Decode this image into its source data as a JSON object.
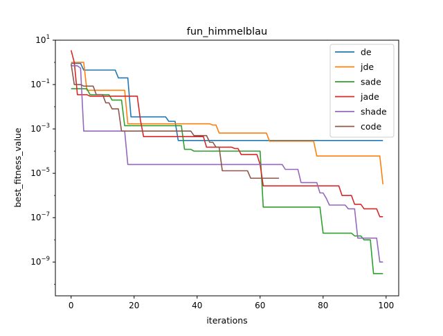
{
  "chart_data": {
    "type": "line",
    "title": "fun_himmelblau",
    "xlabel": "iterations",
    "ylabel": "best_fitness_value",
    "yscale": "log",
    "xlim": [
      -5,
      104
    ],
    "ylim": [
      3e-11,
      10
    ],
    "grid": false,
    "legend_position": "top-right",
    "x_ticks": [
      0,
      20,
      40,
      60,
      80,
      100
    ],
    "y_ticks": [
      {
        "value": 10,
        "base": "10",
        "exp": "1"
      },
      {
        "value": 0.1,
        "base": "10",
        "exp": "−1"
      },
      {
        "value": 0.001,
        "base": "10",
        "exp": "−3"
      },
      {
        "value": 1e-05,
        "base": "10",
        "exp": "−5"
      },
      {
        "value": 1e-07,
        "base": "10",
        "exp": "−7"
      },
      {
        "value": 1e-09,
        "base": "10",
        "exp": "−9"
      }
    ],
    "series": [
      {
        "name": "de",
        "color": "#1f77b4",
        "points": [
          [
            0,
            0.9
          ],
          [
            3,
            0.9
          ],
          [
            4,
            0.45
          ],
          [
            14,
            0.45
          ],
          [
            15,
            0.2
          ],
          [
            18,
            0.2
          ],
          [
            19,
            0.0035
          ],
          [
            30,
            0.0035
          ],
          [
            31,
            0.0022
          ],
          [
            33,
            0.0022
          ],
          [
            34,
            0.0003
          ],
          [
            99,
            0.0003
          ]
        ]
      },
      {
        "name": "jde",
        "color": "#ff7f0e",
        "points": [
          [
            0,
            1.0
          ],
          [
            4,
            1.0
          ],
          [
            5,
            0.055
          ],
          [
            17,
            0.055
          ],
          [
            18,
            0.0017
          ],
          [
            44,
            0.0017
          ],
          [
            45,
            0.0015
          ],
          [
            46,
            0.0015
          ],
          [
            47,
            0.00065
          ],
          [
            62,
            0.00065
          ],
          [
            63,
            0.00028
          ],
          [
            77,
            0.00028
          ],
          [
            78,
            6e-05
          ],
          [
            98,
            6e-05
          ],
          [
            99,
            3.2e-06
          ]
        ]
      },
      {
        "name": "sade",
        "color": "#2ca02c",
        "points": [
          [
            0,
            0.065
          ],
          [
            5,
            0.065
          ],
          [
            6,
            0.035
          ],
          [
            12,
            0.035
          ],
          [
            13,
            0.02
          ],
          [
            16,
            0.02
          ],
          [
            17,
            0.0014
          ],
          [
            35,
            0.0014
          ],
          [
            36,
            0.00012
          ],
          [
            38,
            0.00012
          ],
          [
            39,
            0.0001
          ],
          [
            60,
            0.0001
          ],
          [
            61,
            3e-07
          ],
          [
            79,
            3e-07
          ],
          [
            80,
            2e-08
          ],
          [
            89,
            2e-08
          ],
          [
            90,
            1.5e-08
          ],
          [
            92,
            1.5e-08
          ],
          [
            93,
            1e-08
          ],
          [
            95,
            1e-08
          ],
          [
            96,
            3e-10
          ],
          [
            99,
            3e-10
          ]
        ]
      },
      {
        "name": "jade",
        "color": "#d62728",
        "points": [
          [
            0,
            3.5
          ],
          [
            1,
            1.0
          ],
          [
            2,
            0.035
          ],
          [
            5,
            0.035
          ],
          [
            6,
            0.03
          ],
          [
            21,
            0.03
          ],
          [
            22,
            0.0025
          ],
          [
            23,
            0.00045
          ],
          [
            42,
            0.00045
          ],
          [
            43,
            0.00015
          ],
          [
            51,
            0.00015
          ],
          [
            52,
            0.00013
          ],
          [
            53,
            0.00013
          ],
          [
            54,
            7e-05
          ],
          [
            59,
            7e-05
          ],
          [
            60,
            2.5e-05
          ],
          [
            61,
            2.7e-06
          ],
          [
            85,
            2.7e-06
          ],
          [
            86,
            1e-06
          ],
          [
            89,
            1e-06
          ],
          [
            90,
            4e-07
          ],
          [
            92,
            4e-07
          ],
          [
            93,
            2.5e-07
          ],
          [
            97,
            2.5e-07
          ],
          [
            98,
            1.1e-07
          ],
          [
            99,
            1.1e-07
          ]
        ]
      },
      {
        "name": "shade",
        "color": "#9467bd",
        "points": [
          [
            0,
            0.7
          ],
          [
            2,
            0.7
          ],
          [
            3,
            0.55
          ],
          [
            4,
            0.0008
          ],
          [
            16,
            0.0008
          ],
          [
            17,
            0.0008
          ],
          [
            18,
            2.5e-05
          ],
          [
            67,
            2.5e-05
          ],
          [
            68,
            1.5e-05
          ],
          [
            72,
            1.5e-05
          ],
          [
            73,
            3.8e-06
          ],
          [
            78,
            3.8e-06
          ],
          [
            79,
            1.3e-06
          ],
          [
            80,
            1.3e-06
          ],
          [
            81,
            7.5e-07
          ],
          [
            82,
            3.7e-07
          ],
          [
            87,
            3.7e-07
          ],
          [
            88,
            2.5e-07
          ],
          [
            90,
            2.5e-07
          ],
          [
            91,
            1.2e-08
          ],
          [
            92,
            1.2e-08
          ],
          [
            93,
            1.2e-08
          ],
          [
            97,
            1.2e-08
          ],
          [
            98,
            1e-09
          ],
          [
            99,
            1e-09
          ]
        ]
      },
      {
        "name": "code",
        "color": "#8c564b",
        "points": [
          [
            0,
            0.85
          ],
          [
            1,
            0.1
          ],
          [
            3,
            0.1
          ],
          [
            4,
            0.085
          ],
          [
            7,
            0.085
          ],
          [
            8,
            0.035
          ],
          [
            10,
            0.035
          ],
          [
            11,
            0.015
          ],
          [
            12,
            0.015
          ],
          [
            13,
            0.008
          ],
          [
            15,
            0.008
          ],
          [
            16,
            0.0008
          ],
          [
            38,
            0.0008
          ],
          [
            39,
            0.0005
          ],
          [
            43,
            0.0005
          ],
          [
            44,
            0.00025
          ],
          [
            45,
            0.00025
          ],
          [
            46,
            0.00015
          ],
          [
            47,
            0.00015
          ],
          [
            48,
            1.3e-05
          ],
          [
            56,
            1.3e-05
          ],
          [
            57,
            6e-06
          ],
          [
            66,
            6e-06
          ]
        ]
      }
    ]
  }
}
